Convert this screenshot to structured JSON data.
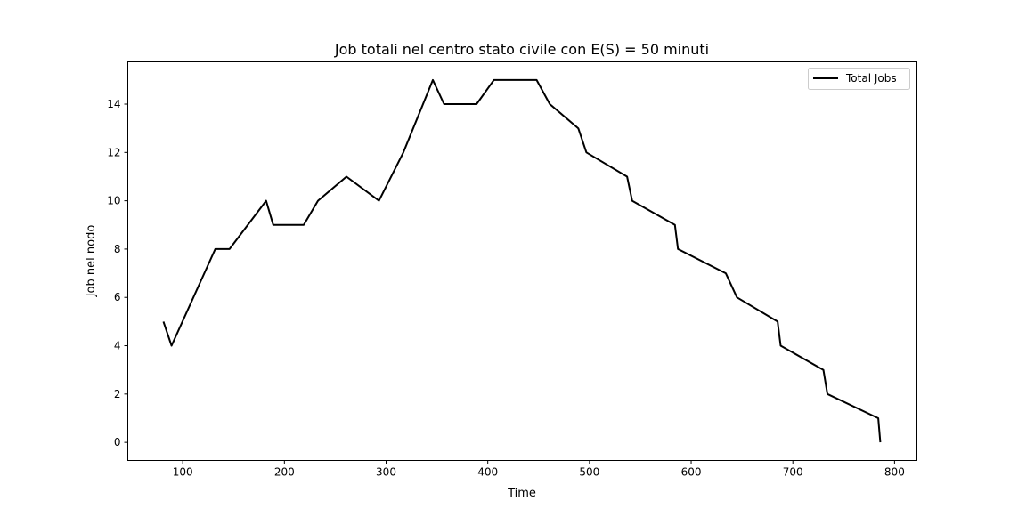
{
  "chart_data": {
    "type": "line",
    "title": "Job totali nel centro stato civile con E(S) = 50 minuti",
    "xlabel": "Time",
    "ylabel": "Job nel nodo",
    "xlim": [
      46,
      822
    ],
    "ylim": [
      -0.75,
      15.75
    ],
    "xticks": [
      100,
      200,
      300,
      400,
      500,
      600,
      700,
      800
    ],
    "yticks": [
      0,
      2,
      4,
      6,
      8,
      10,
      12,
      14
    ],
    "grid": false,
    "legend_position": "top-right",
    "series": [
      {
        "name": "Total Jobs",
        "color": "#000000",
        "x": [
          81,
          89,
          132,
          146,
          182,
          189,
          219,
          233,
          261,
          293,
          317,
          346,
          357,
          389,
          406,
          448,
          461,
          489,
          497,
          537,
          542,
          584,
          587,
          634,
          645,
          685,
          688,
          730,
          734,
          784,
          786
        ],
        "y": [
          5,
          4,
          8,
          8,
          10,
          9,
          9,
          10,
          11,
          10,
          12,
          15,
          14,
          14,
          15,
          15,
          14,
          13,
          12,
          11,
          10,
          9,
          8,
          7,
          6,
          5,
          4,
          3,
          2,
          1,
          0
        ]
      }
    ]
  }
}
